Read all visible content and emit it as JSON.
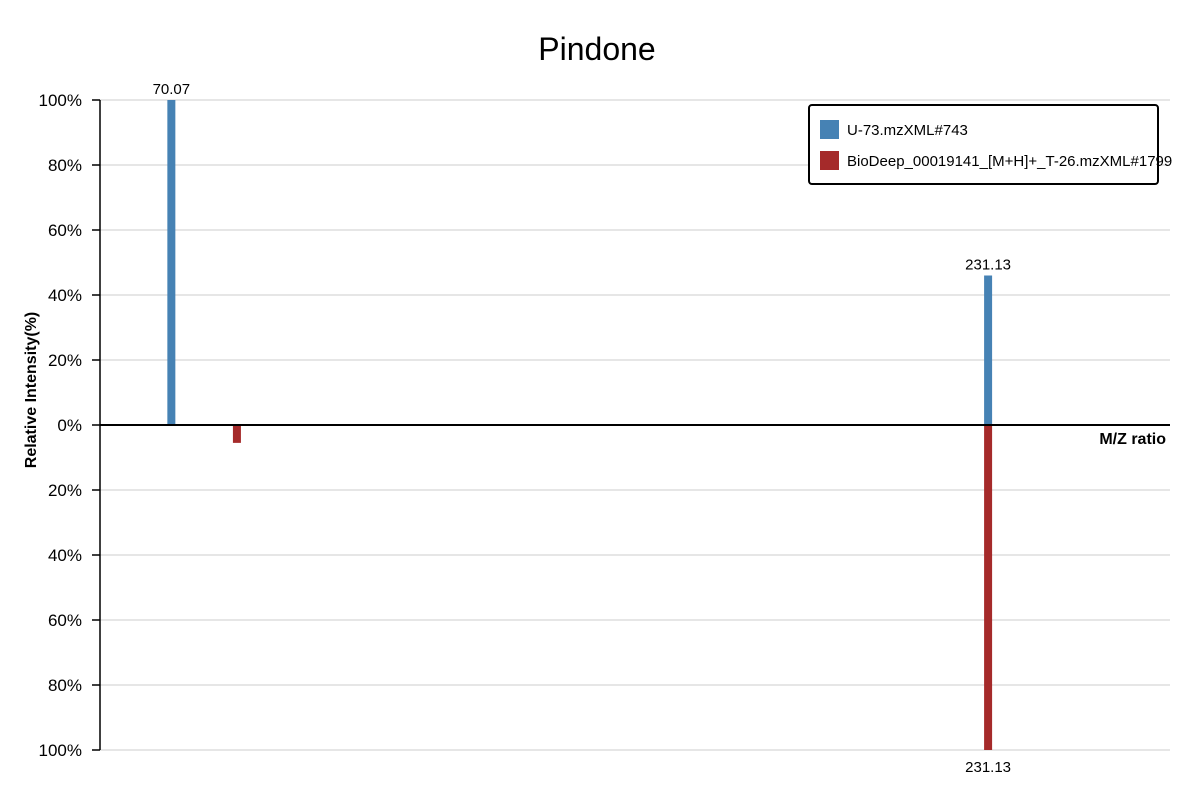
{
  "chart_data": {
    "type": "bar",
    "title": "Pindone",
    "xlabel": "M/Z ratio",
    "ylabel": "Relative Intensity(%)",
    "ylim": [
      -100,
      100
    ],
    "y_ticks": [
      {
        "value": 100,
        "label": "100%"
      },
      {
        "value": 80,
        "label": "80%"
      },
      {
        "value": 60,
        "label": "60%"
      },
      {
        "value": 40,
        "label": "40%"
      },
      {
        "value": 20,
        "label": "20%"
      },
      {
        "value": 0,
        "label": "0%"
      },
      {
        "value": -20,
        "label": "20%"
      },
      {
        "value": -40,
        "label": "40%"
      },
      {
        "value": -60,
        "label": "60%"
      },
      {
        "value": -80,
        "label": "80%"
      },
      {
        "value": -100,
        "label": "100%"
      }
    ],
    "xlim": [
      56,
      267
    ],
    "grid": true,
    "legend_position": "top-right",
    "series": [
      {
        "name": "U-73.mzXML#743",
        "color": "#4682b4",
        "direction": "up",
        "points": [
          {
            "mz": 70.07,
            "intensity": 100,
            "label": "70.07"
          },
          {
            "mz": 231.13,
            "intensity": 46,
            "label": "231.13"
          }
        ]
      },
      {
        "name": "BioDeep_00019141_[M+H]+_T-26.mzXML#1799",
        "color": "#a52a2a",
        "direction": "down",
        "points": [
          {
            "mz": 83.0,
            "intensity": 5.5,
            "label": ""
          },
          {
            "mz": 231.13,
            "intensity": 100,
            "label": "231.13"
          }
        ]
      }
    ]
  }
}
